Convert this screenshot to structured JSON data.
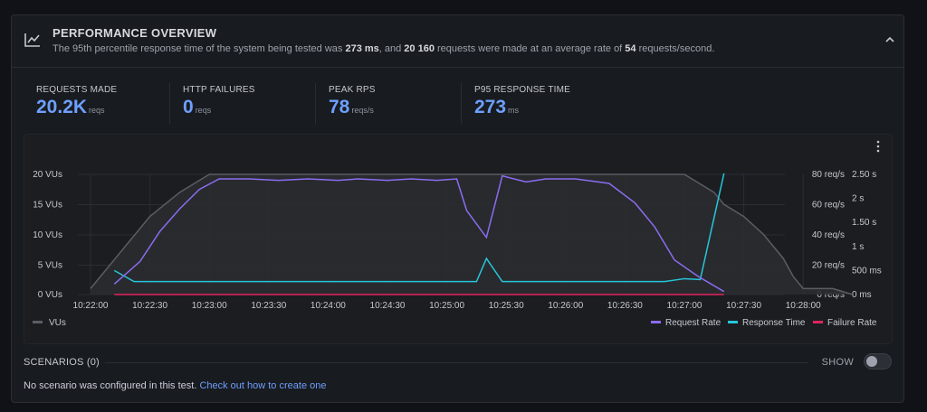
{
  "header": {
    "title": "PERFORMANCE OVERVIEW",
    "summary_1": "The 95th percentile response time of the system being tested was ",
    "p95": "273 ms",
    "summary_2": ", and ",
    "requests": "20 160",
    "summary_3": " requests were made at an average rate of ",
    "rate": "54",
    "summary_4": " requests/second.",
    "icon": "line-chart-icon",
    "collapse_icon": "chevron-up-icon"
  },
  "stats": [
    {
      "label": "REQUESTS MADE",
      "value": "20.2K",
      "unit": "reqs"
    },
    {
      "label": "HTTP FAILURES",
      "value": "0",
      "unit": "reqs"
    },
    {
      "label": "PEAK RPS",
      "value": "78",
      "unit": "reqs/s"
    },
    {
      "label": "P95 RESPONSE TIME",
      "value": "273",
      "unit": "ms"
    }
  ],
  "chart_data": {
    "type": "line",
    "x": [
      "10:22:00",
      "10:22:30",
      "10:23:00",
      "10:23:30",
      "10:24:00",
      "10:24:30",
      "10:25:00",
      "10:25:30",
      "10:26:00",
      "10:26:30",
      "10:27:00",
      "10:27:30",
      "10:28:00"
    ],
    "y_left_ticks": [
      "20 VUs",
      "15 VUs",
      "10 VUs",
      "5 VUs",
      "0 VUs"
    ],
    "y_mid_ticks": [
      "80 req/s",
      "60 req/s",
      "40 req/s",
      "20 req/s",
      "0 req/s"
    ],
    "y_right_ticks": [
      "2.50 s",
      "2 s",
      "1.50 s",
      "1 s",
      "500 ms",
      "0 ms"
    ],
    "colors": {
      "vus": "#5a5d63",
      "request_rate": "#8b6cf0",
      "response_time": "#26c6da",
      "failure_rate": "#e0245e"
    },
    "series": [
      {
        "name": "VUs",
        "unit": "VUs",
        "points": [
          [
            0,
            1
          ],
          [
            10,
            5
          ],
          [
            20,
            9
          ],
          [
            30,
            13
          ],
          [
            45,
            17
          ],
          [
            60,
            20
          ],
          [
            300,
            20
          ],
          [
            315,
            17
          ],
          [
            320,
            15
          ],
          [
            330,
            13
          ],
          [
            340,
            10
          ],
          [
            350,
            6
          ],
          [
            355,
            3
          ],
          [
            360,
            1
          ],
          [
            375,
            1
          ],
          [
            385,
            0
          ]
        ]
      },
      {
        "name": "Request Rate",
        "unit": "req/s",
        "points": [
          [
            12,
            7
          ],
          [
            25,
            22
          ],
          [
            35,
            42
          ],
          [
            45,
            57
          ],
          [
            55,
            70
          ],
          [
            65,
            77
          ],
          [
            80,
            77
          ],
          [
            95,
            76
          ],
          [
            110,
            77
          ],
          [
            125,
            76
          ],
          [
            135,
            77
          ],
          [
            150,
            76
          ],
          [
            162,
            77
          ],
          [
            175,
            76
          ],
          [
            185,
            77
          ],
          [
            190,
            56
          ],
          [
            200,
            38
          ],
          [
            208,
            79
          ],
          [
            220,
            75
          ],
          [
            230,
            77
          ],
          [
            245,
            77
          ],
          [
            262,
            74
          ],
          [
            275,
            61
          ],
          [
            285,
            45
          ],
          [
            295,
            23
          ],
          [
            307,
            12
          ],
          [
            320,
            2
          ]
        ]
      },
      {
        "name": "Response Time",
        "unit": "ms",
        "points": [
          [
            12,
            500
          ],
          [
            22,
            270
          ],
          [
            100,
            270
          ],
          [
            195,
            270
          ],
          [
            200,
            750
          ],
          [
            208,
            270
          ],
          [
            290,
            270
          ],
          [
            300,
            330
          ],
          [
            308,
            310
          ],
          [
            320,
            2520
          ]
        ]
      },
      {
        "name": "Failure Rate",
        "unit": "req/s",
        "points": [
          [
            12,
            0
          ],
          [
            320,
            0
          ]
        ]
      }
    ],
    "legend": [
      {
        "name": "VUs",
        "color": "#5a5d63"
      },
      {
        "name": "Request Rate",
        "color": "#8b6cf0"
      },
      {
        "name": "Response Time",
        "color": "#26c6da"
      },
      {
        "name": "Failure Rate",
        "color": "#e0245e"
      }
    ],
    "menu_icon": "kebab-menu-icon"
  },
  "scenarios": {
    "label": "SCENARIOS (0)",
    "show_label": "SHOW",
    "empty_text": "No scenario was configured in this test.",
    "link_text": "Check out how to create one"
  }
}
